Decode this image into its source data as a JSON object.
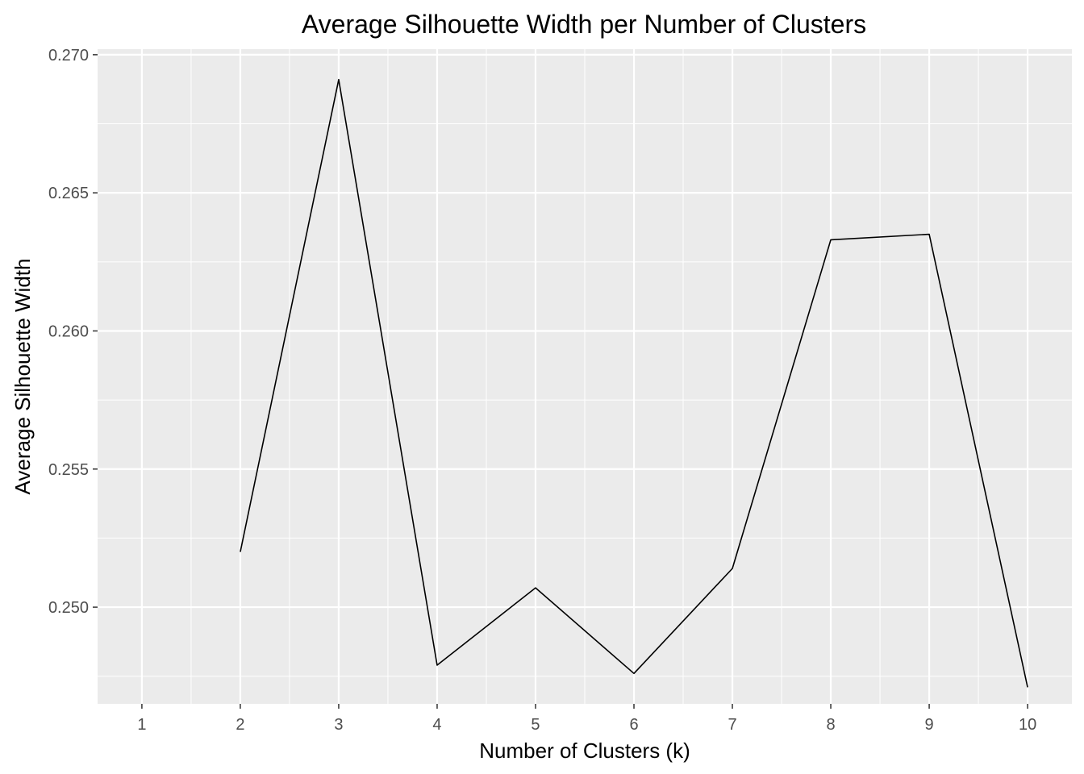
{
  "chart_data": {
    "type": "line",
    "title": "Average Silhouette Width per Number of Clusters",
    "xlabel": "Number of Clusters (k)",
    "ylabel": "Average Silhouette Width",
    "x_ticks": [
      "1",
      "2",
      "3",
      "4",
      "5",
      "6",
      "7",
      "8",
      "9",
      "10"
    ],
    "y_ticks": [
      "0.250",
      "0.255",
      "0.260",
      "0.265",
      "0.270"
    ],
    "xlim": [
      0.55,
      10.45
    ],
    "ylim": [
      0.2465,
      0.2702
    ],
    "series": [
      {
        "x": [
          2,
          3,
          4,
          5,
          6,
          7,
          8,
          9,
          10
        ],
        "values": [
          0.252,
          0.2691,
          0.2479,
          0.2507,
          0.2476,
          0.2514,
          0.2633,
          0.2635,
          0.2471
        ]
      }
    ],
    "grid": true,
    "colors": {
      "panel_background": "#ebebeb",
      "grid_major": "#ffffff",
      "line": "#000000",
      "tick_label": "#4d4d4d"
    }
  }
}
